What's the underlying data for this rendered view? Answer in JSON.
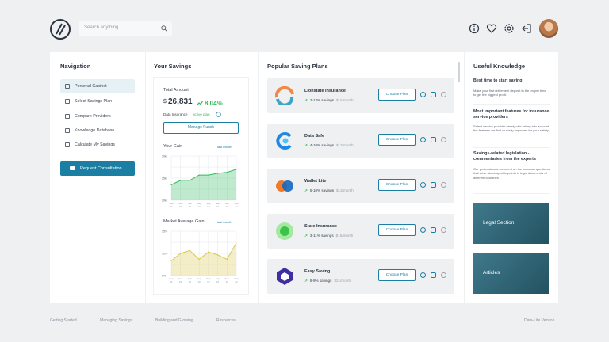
{
  "header": {
    "search_placeholder": "Search anything",
    "icons": [
      "info-icon",
      "heart-icon",
      "settings-icon",
      "logout-icon"
    ]
  },
  "navigation": {
    "title": "Navigation",
    "items": [
      {
        "label": "Personal Cabinet",
        "icon": "grid-icon",
        "active": true
      },
      {
        "label": "Select Savings Plan",
        "icon": "document-icon",
        "active": false
      },
      {
        "label": "Compare Providers",
        "icon": "list-icon",
        "active": false
      },
      {
        "label": "Knowledge Database",
        "icon": "database-icon",
        "active": false
      },
      {
        "label": "Calculate My Savings",
        "icon": "calculator-icon",
        "active": false
      }
    ],
    "cta": "Request Consultation"
  },
  "savings": {
    "title": "Your Savings",
    "total_label": "Total Amount",
    "currency": "$",
    "total_value": "26,831",
    "change": "8.04%",
    "insurance_label": "Data Insurance",
    "insurance_status": "active plan",
    "manage_button": "Manage Funds",
    "gain": {
      "title": "Your Gain",
      "period": "last month",
      "y_ticks": [
        "30k",
        "25k",
        "20k"
      ],
      "x_ticks": [
        "Sep 01",
        "Sep 04",
        "Sep 07",
        "Sep 10",
        "Sep 13",
        "Sep 16",
        "Sep 19",
        "Sep 22"
      ]
    },
    "market": {
      "title": "Market Average Gain",
      "period": "last month",
      "y_ticks": [
        "15%",
        "10%",
        "0%"
      ],
      "x_ticks": [
        "Sep 01",
        "Sep 04",
        "Sep 07",
        "Sep 10",
        "Sep 13",
        "Sep 16",
        "Sep 19",
        "Sep 22"
      ]
    }
  },
  "plans": {
    "title": "Popular Saving Plans",
    "button_label": "Choose Plan",
    "items": [
      {
        "name": "Lionstate Insurance",
        "range": "2-12% savings",
        "price": "$15/month"
      },
      {
        "name": "Data Safe",
        "range": "4-10% savings",
        "price": "$13/month"
      },
      {
        "name": "Wallet Lite",
        "range": "5-10% savings",
        "price": "$13/month"
      },
      {
        "name": "State Insurance",
        "range": "3-11% savings",
        "price": "$15/month"
      },
      {
        "name": "Easy Saving",
        "range": "8-9% savings",
        "price": "$21/month"
      }
    ]
  },
  "knowledge": {
    "title": "Useful Knowledge",
    "articles": [
      {
        "title": "Best time to start saving",
        "text": "Make your first retirement deposit in the proper time to get the biggest profit."
      },
      {
        "title": "Most important features for insurance service providers",
        "text": "Select service provider wisely with taking into account the features we find crucially important for your safety."
      },
      {
        "title": "Savings-related legislation - commentaries from the experts",
        "text": "Our professionals comment on the common questions that arise about specific points in legal documents of different countries"
      }
    ],
    "tiles": [
      "Legal Section",
      "Articles"
    ]
  },
  "footer": {
    "links": [
      "Getting Started",
      "Managing Savings",
      "Building and Growing",
      "Resources"
    ],
    "version": "Data-Lite Version"
  },
  "chart_data": [
    {
      "type": "area",
      "title": "Your Gain",
      "x": [
        "Sep 01",
        "Sep 04",
        "Sep 07",
        "Sep 10",
        "Sep 13",
        "Sep 16",
        "Sep 19",
        "Sep 22"
      ],
      "series": [
        {
          "values": [
            23500,
            24500,
            24500,
            25700,
            25700,
            26100,
            26300,
            27000
          ]
        }
      ],
      "ylim": [
        20000,
        30000
      ],
      "color": "#2ebb5b"
    },
    {
      "type": "area",
      "title": "Market Average Gain",
      "x": [
        "Sep 01",
        "Sep 04",
        "Sep 07",
        "Sep 10",
        "Sep 13",
        "Sep 16",
        "Sep 19",
        "Sep 22"
      ],
      "series": [
        {
          "values": [
            5,
            7.5,
            8.5,
            5.5,
            8,
            7,
            5.5,
            11
          ]
        }
      ],
      "ylim": [
        0,
        15
      ],
      "color": "#d9c84a"
    }
  ],
  "colors": {
    "accent": "#1b7fa3",
    "positive": "#2ebb5b",
    "tile": "#2f6e82"
  }
}
